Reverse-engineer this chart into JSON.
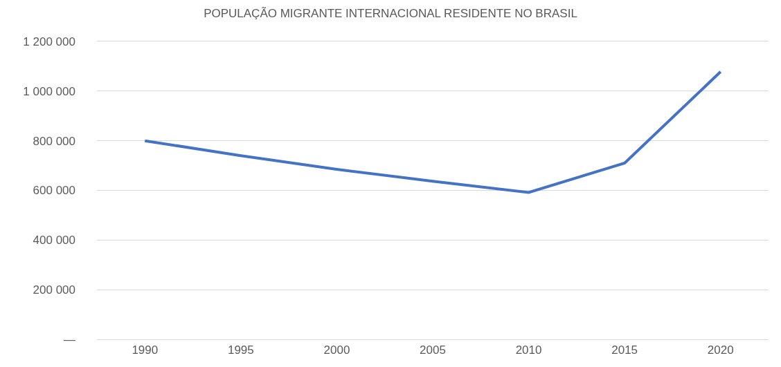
{
  "chart_data": {
    "type": "line",
    "title": "POPULAÇÃO MIGRANTE INTERNACIONAL RESIDENTE NO BRASIL",
    "categories": [
      "1990",
      "1995",
      "2000",
      "2005",
      "2010",
      "2015",
      "2020"
    ],
    "series": [
      {
        "color": "#4472c4",
        "values": [
          800000,
          740000,
          685000,
          637000,
          592000,
          710000,
          1078000
        ]
      }
    ],
    "ylim": [
      0,
      1200000
    ],
    "yticks": [
      {
        "value": 0,
        "label": "—"
      },
      {
        "value": 200000,
        "label": "200 000"
      },
      {
        "value": 400000,
        "label": "400 000"
      },
      {
        "value": 600000,
        "label": "600 000"
      },
      {
        "value": 800000,
        "label": "800 000"
      },
      {
        "value": 1000000,
        "label": "1 000 000"
      },
      {
        "value": 1200000,
        "label": "1 200 000"
      }
    ],
    "grid": "y",
    "marker": "none",
    "line_style": "solid"
  }
}
